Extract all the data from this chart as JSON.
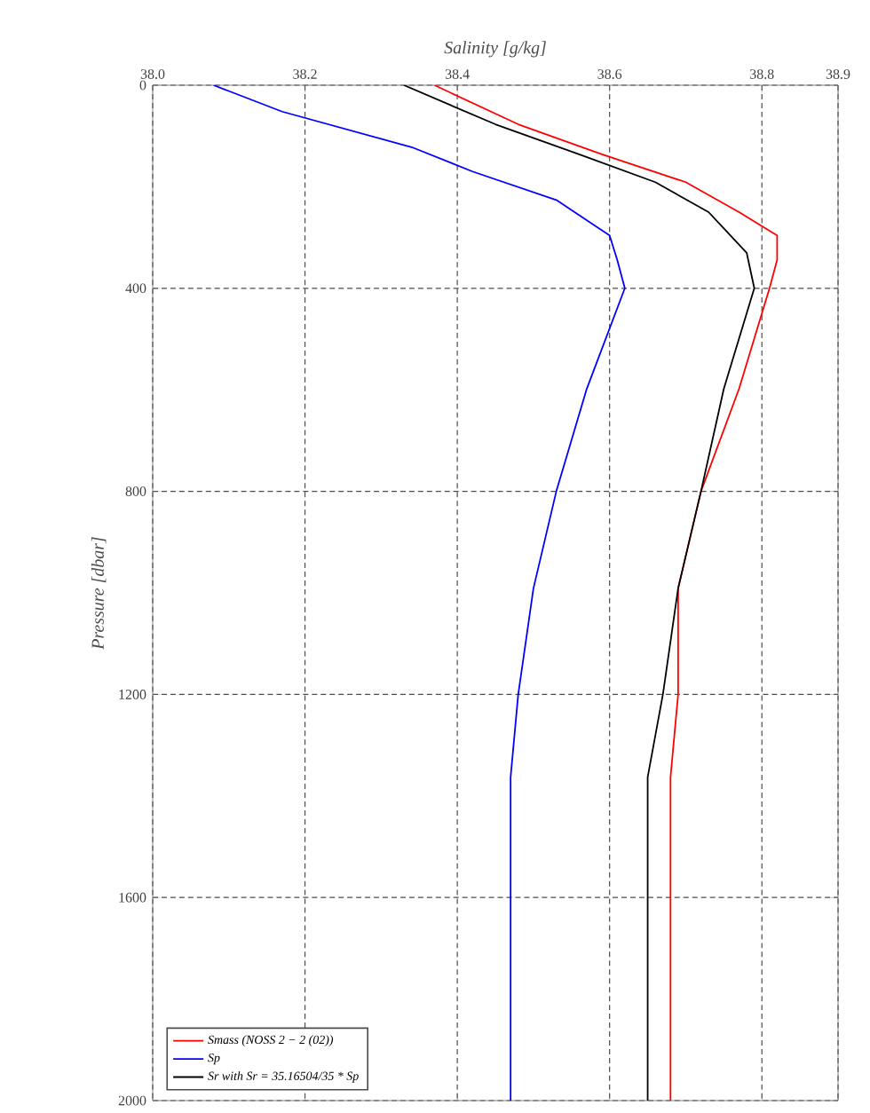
{
  "chart_data": {
    "type": "line",
    "xlabel": "Salinity [g/kg]",
    "ylabel": "Pressure [dbar]",
    "xlim": [
      38.0,
      38.9
    ],
    "xticks": [
      {
        "value": 38.0,
        "label": "38.0"
      },
      {
        "value": 38.2,
        "label": "38.2"
      },
      {
        "value": 38.4,
        "label": "38.4"
      },
      {
        "value": 38.6,
        "label": "38.6"
      },
      {
        "value": 38.8,
        "label": "38.8"
      },
      {
        "value": 38.9,
        "label": "38.9"
      }
    ],
    "ylim": [
      2000,
      0
    ],
    "yticks": [
      0,
      400,
      800,
      1200,
      1600,
      2000
    ],
    "grid": true,
    "legend": "bottom left",
    "series": [
      {
        "name": "Smass (NOSS 2 − 2 (02))",
        "color": "#ff0000",
        "x": [
          38.37,
          38.48,
          38.59,
          38.7,
          38.77,
          38.82,
          38.82,
          38.81,
          38.77,
          38.72,
          38.69,
          38.69,
          38.68,
          38.68
        ],
        "values": [
          0,
          77,
          136,
          191,
          250,
          296,
          344,
          400,
          598,
          800,
          991,
          1200,
          1363,
          2000
        ]
      },
      {
        "name": "Sp",
        "color": "#0000ff",
        "x": [
          38.08,
          38.17,
          38.34,
          38.42,
          38.53,
          38.6,
          38.61,
          38.62,
          38.57,
          38.53,
          38.5,
          38.48,
          38.47,
          38.47
        ],
        "values": [
          0,
          52,
          122,
          170,
          226,
          296,
          344,
          400,
          598,
          800,
          991,
          1200,
          1363,
          2000
        ]
      },
      {
        "name": "Sr with Sr = 35.16504/35 * Sp",
        "color": "#000000",
        "x": [
          38.33,
          38.45,
          38.56,
          38.66,
          38.73,
          38.78,
          38.79,
          38.75,
          38.72,
          38.69,
          38.67,
          38.65,
          38.65
        ],
        "values": [
          0,
          77,
          136,
          191,
          250,
          330,
          400,
          598,
          800,
          991,
          1200,
          1363,
          2000
        ]
      }
    ]
  }
}
